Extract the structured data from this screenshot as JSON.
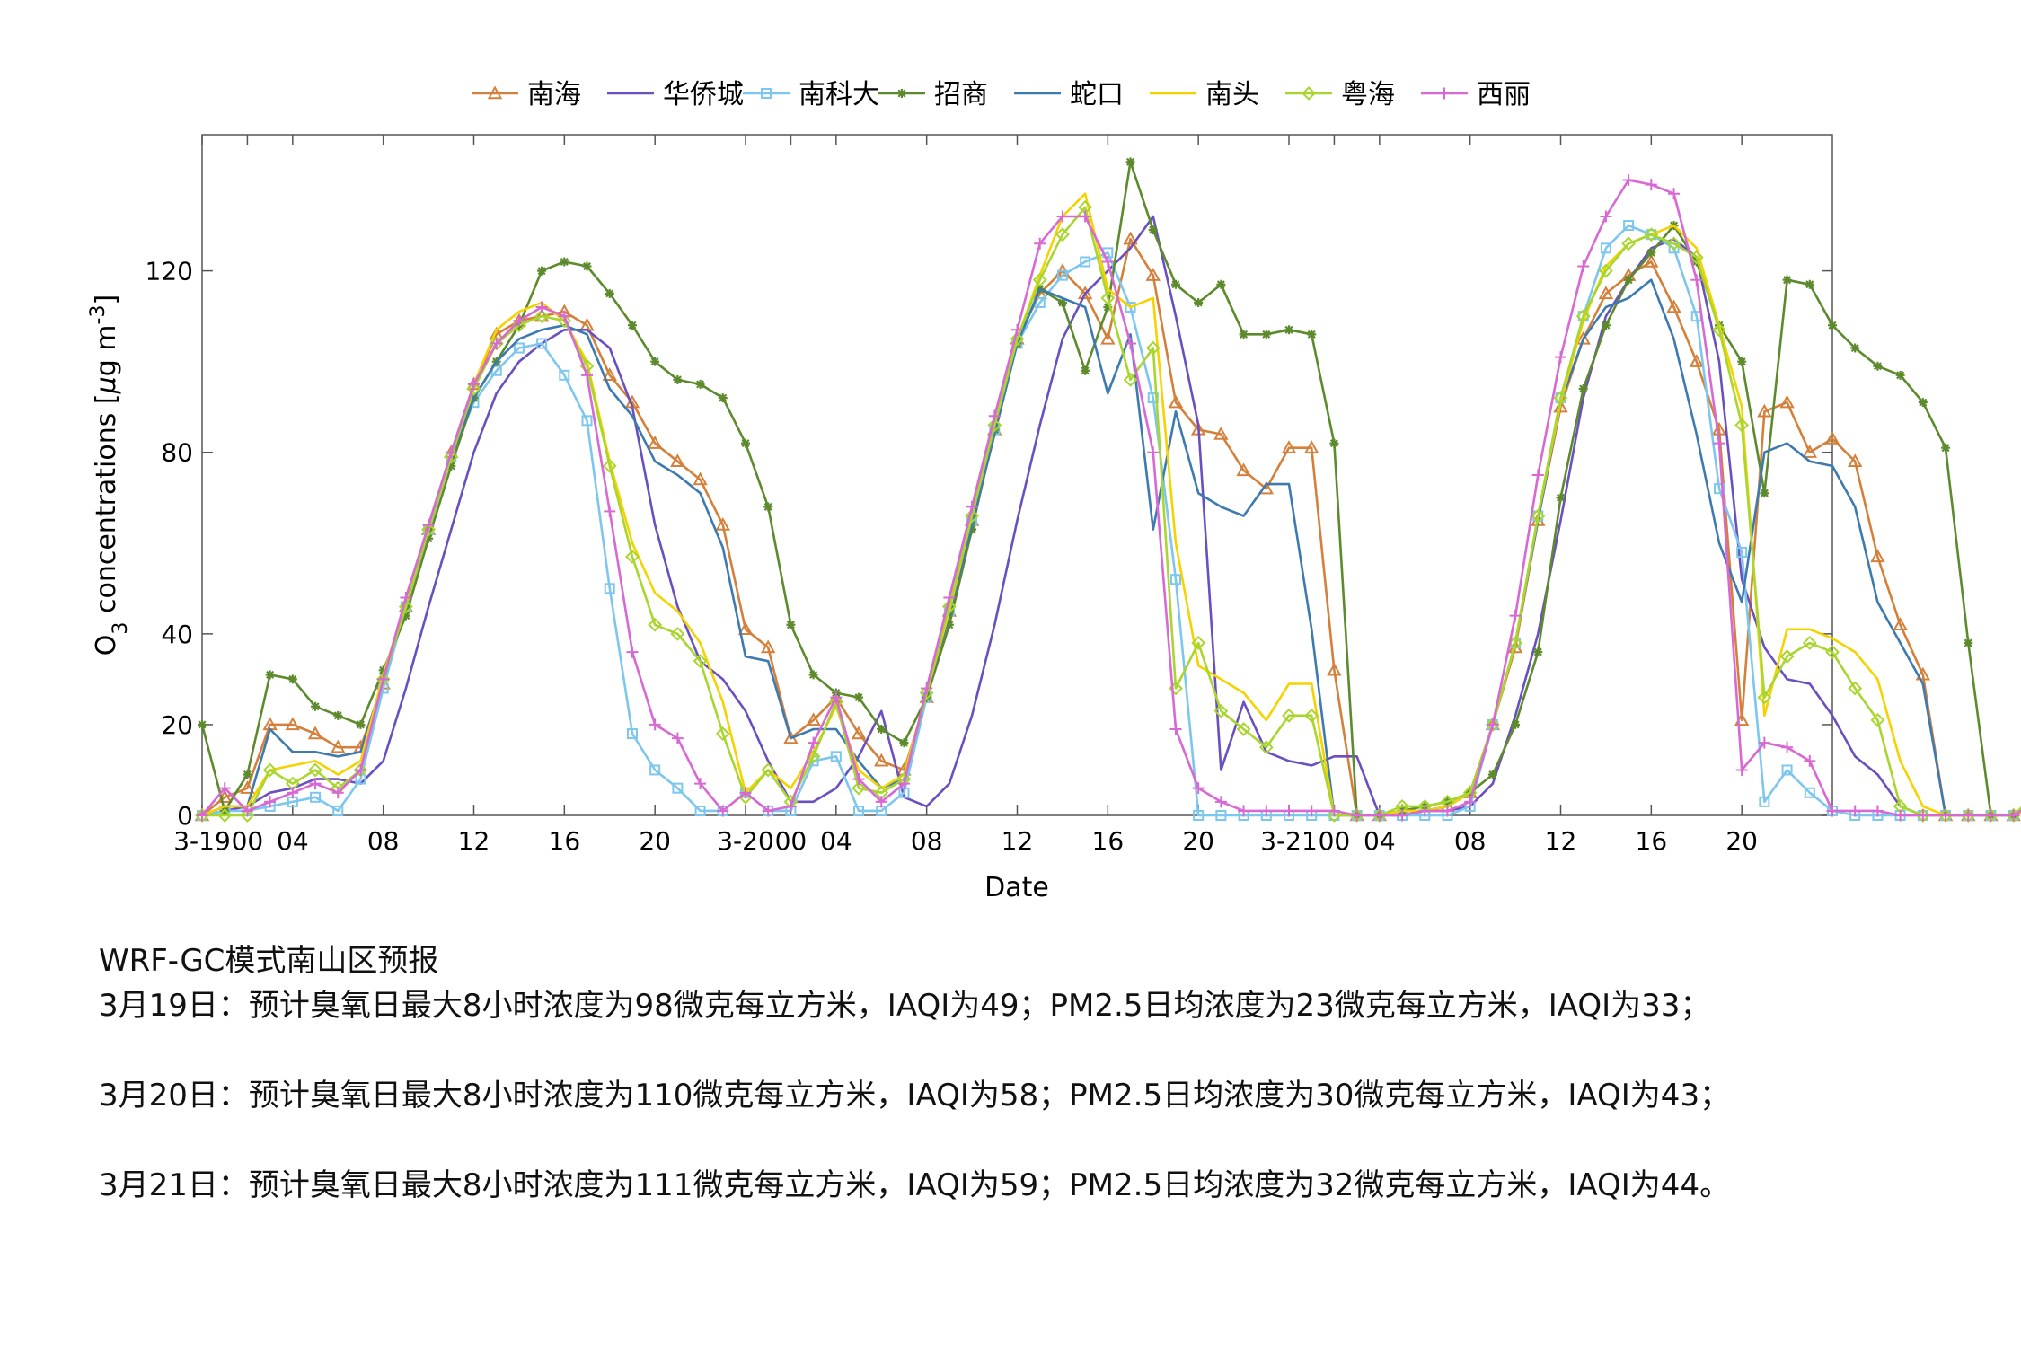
{
  "chart_data": {
    "type": "line",
    "xlabel": "Date",
    "ylabel": "O3 concentrations [μg m-3]",
    "ylim": [
      0,
      150
    ],
    "xlim": [
      0,
      72
    ],
    "yticks": [
      0,
      20,
      40,
      80,
      120
    ],
    "xticks": [
      {
        "pos": 0,
        "label": "3-19"
      },
      {
        "pos": 2,
        "label": "00"
      },
      {
        "pos": 4,
        "label": "04"
      },
      {
        "pos": 8,
        "label": "08"
      },
      {
        "pos": 12,
        "label": "12"
      },
      {
        "pos": 16,
        "label": "16"
      },
      {
        "pos": 20,
        "label": "20"
      },
      {
        "pos": 24,
        "label": "3-20"
      },
      {
        "pos": 26,
        "label": "00"
      },
      {
        "pos": 28,
        "label": "04"
      },
      {
        "pos": 32,
        "label": "08"
      },
      {
        "pos": 36,
        "label": "12"
      },
      {
        "pos": 40,
        "label": "16"
      },
      {
        "pos": 44,
        "label": "20"
      },
      {
        "pos": 48,
        "label": "3-21"
      },
      {
        "pos": 50,
        "label": "00"
      },
      {
        "pos": 52,
        "label": "04"
      },
      {
        "pos": 56,
        "label": "08"
      },
      {
        "pos": 60,
        "label": "12"
      },
      {
        "pos": 64,
        "label": "16"
      },
      {
        "pos": 68,
        "label": "20"
      }
    ],
    "grid": false,
    "legend_position": "top",
    "series": [
      {
        "name": "南海",
        "color": "#d4803a",
        "marker": "triangle",
        "values": [
          0,
          4,
          6,
          20,
          20,
          18,
          15,
          15,
          29,
          46,
          63,
          80,
          95,
          106,
          109,
          110,
          111,
          108,
          97,
          91,
          82,
          78,
          74,
          64,
          41,
          37,
          17,
          21,
          26,
          18,
          12,
          10,
          26,
          45,
          65,
          85,
          105,
          115,
          120,
          115,
          105,
          127,
          119,
          91,
          85,
          84,
          76,
          72,
          81,
          81,
          32,
          0,
          0,
          1,
          1,
          2,
          5,
          20,
          37,
          65,
          90,
          105,
          115,
          119,
          122,
          112,
          100,
          85,
          21,
          89,
          91,
          80,
          83,
          78,
          57,
          42,
          31,
          0,
          0,
          0,
          0,
          2
        ]
      },
      {
        "name": "华侨城",
        "color": "#6a4fc0",
        "marker": "none",
        "values": [
          0,
          1,
          2,
          5,
          6,
          8,
          8,
          7,
          12,
          28,
          46,
          63,
          80,
          93,
          100,
          104,
          107,
          107,
          103,
          90,
          64,
          46,
          34,
          30,
          23,
          12,
          3,
          3,
          6,
          13,
          23,
          4,
          2,
          7,
          22,
          42,
          65,
          86,
          105,
          115,
          120,
          125,
          132,
          110,
          86,
          10,
          25,
          14,
          12,
          11,
          13,
          13,
          0,
          0,
          1,
          1,
          2,
          7,
          22,
          40,
          65,
          92,
          110,
          118,
          125,
          127,
          123,
          100,
          52,
          37,
          30,
          29,
          22,
          13,
          9,
          2,
          0,
          0,
          0,
          0,
          0,
          2
        ]
      },
      {
        "name": "南科大",
        "color": "#7dc6ee",
        "marker": "square",
        "values": [
          0,
          1,
          1,
          2,
          3,
          4,
          1,
          8,
          28,
          46,
          63,
          79,
          91,
          98,
          103,
          104,
          97,
          87,
          50,
          18,
          10,
          6,
          1,
          1,
          5,
          1,
          1,
          12,
          13,
          1,
          1,
          5,
          26,
          45,
          65,
          85,
          104,
          113,
          119,
          122,
          124,
          112,
          92,
          52,
          0,
          0,
          0,
          0,
          0,
          0,
          0,
          0,
          0,
          0,
          0,
          0,
          2,
          20,
          38,
          66,
          92,
          110,
          125,
          130,
          128,
          125,
          110,
          72,
          58,
          3,
          10,
          5,
          1,
          0,
          0,
          0,
          0,
          0,
          0,
          0,
          0,
          3
        ]
      },
      {
        "name": "招商",
        "color": "#5c8a2c",
        "marker": "star",
        "values": [
          20,
          1,
          9,
          31,
          30,
          24,
          22,
          20,
          32,
          44,
          61,
          77,
          92,
          100,
          108,
          120,
          122,
          121,
          115,
          108,
          100,
          96,
          95,
          92,
          82,
          68,
          42,
          31,
          27,
          26,
          19,
          16,
          26,
          42,
          63,
          85,
          104,
          116,
          113,
          98,
          112,
          144,
          129,
          117,
          113,
          117,
          106,
          106,
          107,
          106,
          82,
          0,
          0,
          1,
          2,
          3,
          5,
          9,
          20,
          36,
          70,
          94,
          108,
          118,
          124,
          130,
          122,
          108,
          100,
          71,
          118,
          117,
          108,
          103,
          99,
          97,
          91,
          81,
          38,
          0,
          0,
          2
        ]
      },
      {
        "name": "蛇口",
        "color": "#3d7aaf",
        "marker": "none",
        "values": [
          0,
          2,
          2,
          19,
          14,
          14,
          13,
          14,
          30,
          46,
          63,
          79,
          92,
          100,
          105,
          107,
          108,
          106,
          94,
          88,
          78,
          75,
          71,
          59,
          35,
          34,
          17,
          19,
          19,
          12,
          6,
          8,
          27,
          44,
          64,
          84,
          104,
          116,
          114,
          112,
          93,
          106,
          63,
          89,
          71,
          68,
          66,
          73,
          73,
          41,
          0,
          0,
          0,
          1,
          1,
          2,
          5,
          20,
          38,
          65,
          91,
          105,
          112,
          114,
          118,
          105,
          84,
          60,
          47,
          80,
          82,
          78,
          77,
          68,
          47,
          38,
          29,
          0,
          0,
          0,
          0,
          2
        ]
      },
      {
        "name": "南头",
        "color": "#f6d200",
        "marker": "none",
        "values": [
          0,
          2,
          2,
          10,
          11,
          12,
          9,
          12,
          31,
          47,
          64,
          80,
          95,
          107,
          111,
          113,
          109,
          100,
          78,
          60,
          49,
          45,
          38,
          25,
          5,
          10,
          6,
          14,
          24,
          10,
          6,
          9,
          27,
          45,
          66,
          86,
          105,
          119,
          132,
          137,
          116,
          112,
          114,
          60,
          33,
          30,
          27,
          21,
          29,
          29,
          0,
          0,
          0,
          1,
          1,
          2,
          5,
          20,
          38,
          66,
          91,
          109,
          121,
          126,
          128,
          130,
          125,
          108,
          90,
          22,
          41,
          41,
          39,
          36,
          30,
          12,
          2,
          0,
          0,
          0,
          0,
          2
        ]
      },
      {
        "name": "粤海",
        "color": "#a9d62e",
        "marker": "diamond",
        "values": [
          0,
          0,
          0,
          10,
          7,
          10,
          6,
          10,
          30,
          46,
          63,
          79,
          94,
          104,
          108,
          110,
          109,
          99,
          77,
          57,
          42,
          40,
          34,
          18,
          4,
          10,
          3,
          13,
          25,
          6,
          5,
          8,
          27,
          46,
          66,
          86,
          105,
          118,
          128,
          134,
          114,
          96,
          103,
          28,
          38,
          23,
          19,
          15,
          22,
          22,
          0,
          0,
          0,
          2,
          2,
          3,
          5,
          20,
          38,
          66,
          92,
          110,
          120,
          126,
          128,
          126,
          123,
          107,
          86,
          26,
          35,
          38,
          36,
          28,
          21,
          2,
          0,
          0,
          0,
          0,
          0,
          5
        ]
      },
      {
        "name": "西丽",
        "color": "#d868d3",
        "marker": "plus",
        "values": [
          0,
          6,
          1,
          3,
          5,
          7,
          5,
          10,
          30,
          48,
          64,
          80,
          95,
          104,
          109,
          112,
          110,
          97,
          67,
          36,
          20,
          17,
          7,
          1,
          5,
          1,
          2,
          16,
          26,
          8,
          3,
          7,
          28,
          48,
          68,
          88,
          107,
          126,
          132,
          132,
          122,
          104,
          80,
          19,
          6,
          3,
          1,
          1,
          1,
          1,
          1,
          0,
          0,
          0,
          1,
          1,
          3,
          20,
          44,
          75,
          101,
          121,
          132,
          140,
          139,
          137,
          118,
          82,
          10,
          16,
          15,
          12,
          1,
          1,
          1,
          0,
          0,
          0,
          0,
          0,
          0,
          3
        ]
      }
    ]
  },
  "notes": {
    "title": "WRF-GC模式南山区预报",
    "day1": "3月19日：预计臭氧日最大8小时浓度为98微克每立方米，IAQI为49；PM2.5日均浓度为23微克每立方米，IAQI为33；",
    "day2": "3月20日：预计臭氧日最大8小时浓度为110微克每立方米，IAQI为58；PM2.5日均浓度为30微克每立方米，IAQI为43；",
    "day3": "3月21日：预计臭氧日最大8小时浓度为111微克每立方米，IAQI为59；PM2.5日均浓度为32微克每立方米，IAQI为44。"
  }
}
